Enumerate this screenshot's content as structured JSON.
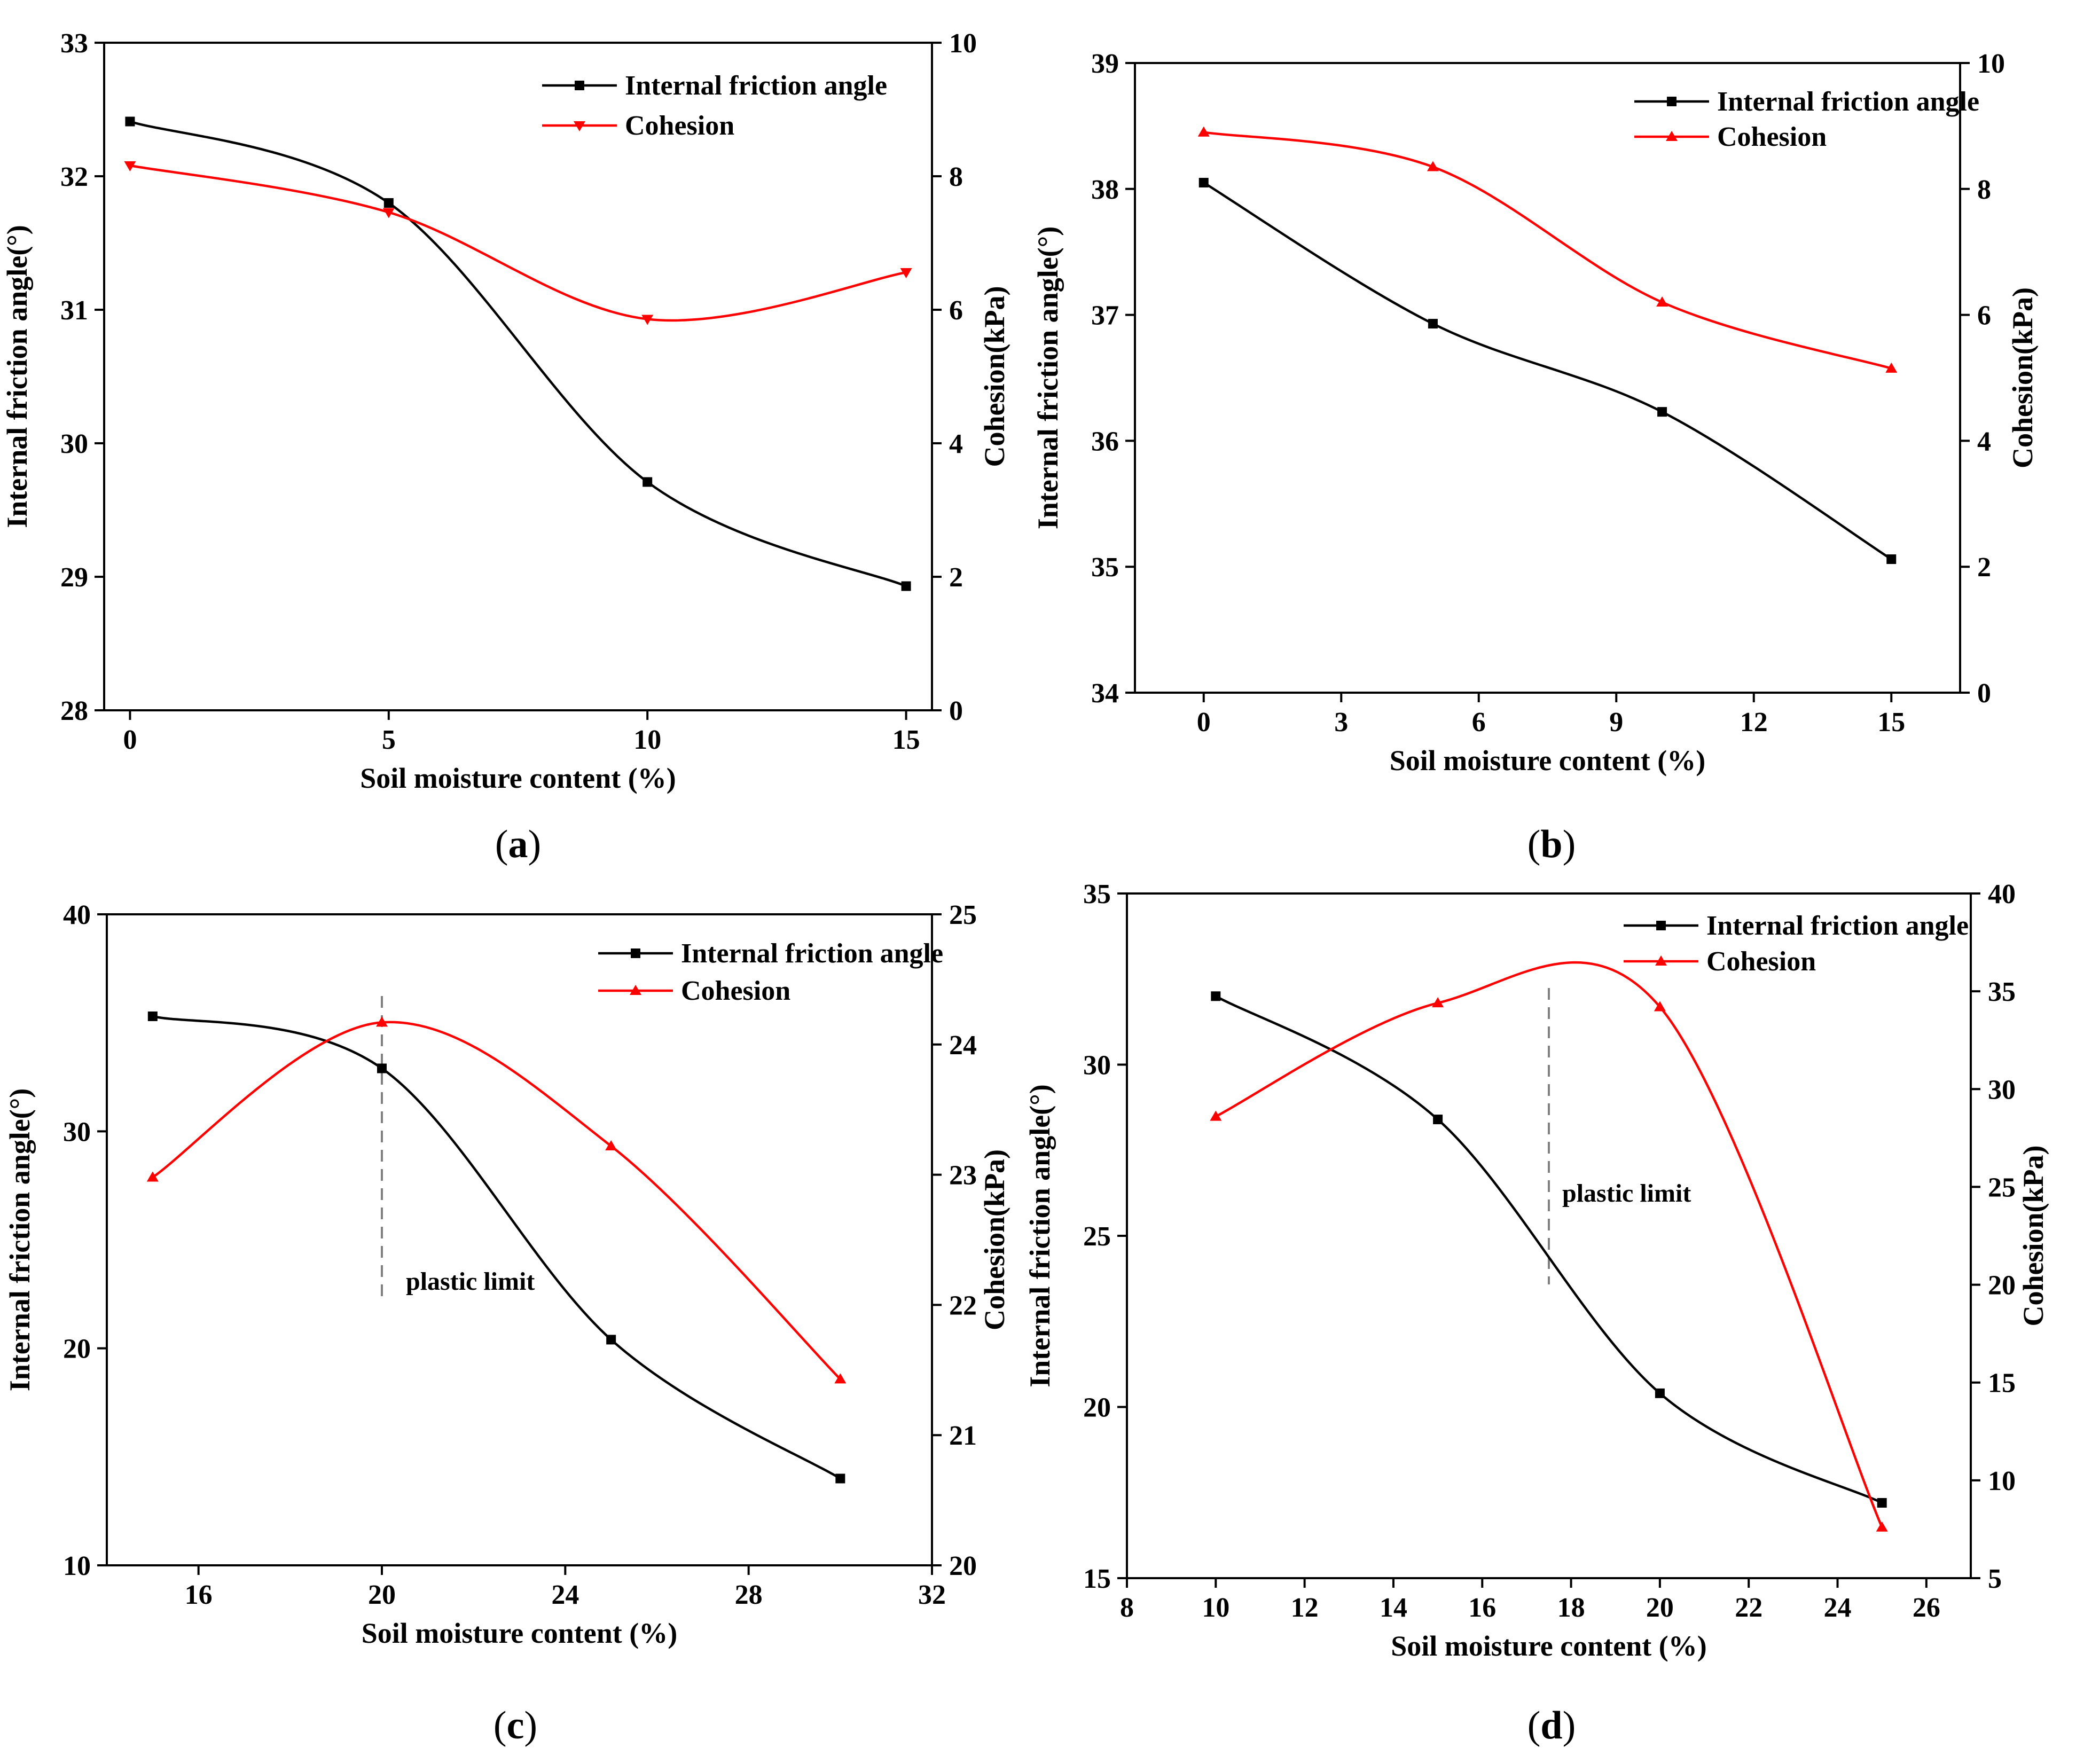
{
  "chart_data": [
    {
      "type": "line",
      "panel_label": "a",
      "xlabel": "Soil moisture content (%)",
      "ylabel_left": "Internal friction angle(°)",
      "ylabel_right": "Cohesion(kPa)",
      "xlim": [
        -0.5,
        15.5
      ],
      "xticks": [
        0,
        5,
        10,
        15
      ],
      "ylim_left": [
        28,
        33
      ],
      "yticks_left": [
        28,
        29,
        30,
        31,
        32,
        33
      ],
      "ylim_right": [
        0,
        10
      ],
      "yticks_right": [
        0,
        2,
        4,
        6,
        8,
        10
      ],
      "legend_position": "top-right",
      "series": [
        {
          "name": "Internal friction angle",
          "axis": "left",
          "color": "#000000",
          "marker": "square",
          "x": [
            0,
            5,
            10,
            15
          ],
          "y": [
            32.41,
            31.8,
            29.71,
            28.93
          ]
        },
        {
          "name": "Cohesion",
          "axis": "right",
          "color": "#ff0000",
          "marker": "triangle-down",
          "x": [
            0,
            5,
            10,
            15
          ],
          "y": [
            8.16,
            7.46,
            5.86,
            6.56
          ]
        }
      ],
      "annotations": []
    },
    {
      "type": "line",
      "panel_label": "b",
      "xlabel": "Soil moisture content (%)",
      "ylabel_left": "Internal friction angle(°)",
      "ylabel_right": "Cohesion(kPa)",
      "xlim": [
        -1.5,
        16.5
      ],
      "xticks": [
        0,
        3,
        6,
        9,
        12,
        15
      ],
      "ylim_left": [
        34,
        39
      ],
      "yticks_left": [
        34,
        35,
        36,
        37,
        38,
        39
      ],
      "ylim_right": [
        0,
        10
      ],
      "yticks_right": [
        0,
        2,
        4,
        6,
        8,
        10
      ],
      "legend_position": "top-right",
      "series": [
        {
          "name": "Internal friction angle",
          "axis": "left",
          "color": "#000000",
          "marker": "square",
          "x": [
            0,
            5,
            10,
            15
          ],
          "y": [
            38.05,
            36.93,
            36.23,
            35.06
          ]
        },
        {
          "name": "Cohesion",
          "axis": "right",
          "color": "#ff0000",
          "marker": "triangle-up",
          "x": [
            0,
            5,
            10,
            15
          ],
          "y": [
            8.9,
            8.35,
            6.2,
            5.15
          ]
        }
      ],
      "annotations": []
    },
    {
      "type": "line",
      "panel_label": "c",
      "xlabel": "Soil moisture content (%)",
      "ylabel_left": "Internal friction angle(°)",
      "ylabel_right": "Cohesion(kPa)",
      "xlim": [
        14,
        32
      ],
      "xticks": [
        16,
        20,
        24,
        28,
        32
      ],
      "ylim_left": [
        10,
        40
      ],
      "yticks_left": [
        10,
        20,
        30,
        40
      ],
      "ylim_right": [
        20,
        25
      ],
      "yticks_right": [
        20,
        21,
        22,
        23,
        24,
        25
      ],
      "legend_position": "top-right",
      "series": [
        {
          "name": "Internal friction angle",
          "axis": "left",
          "color": "#000000",
          "marker": "square",
          "x": [
            15,
            20,
            25,
            30
          ],
          "y": [
            35.3,
            32.9,
            20.4,
            14.0
          ]
        },
        {
          "name": "Cohesion",
          "axis": "right",
          "color": "#ff0000",
          "marker": "triangle-up",
          "x": [
            15,
            20,
            25,
            30
          ],
          "y": [
            22.98,
            24.17,
            23.22,
            21.43
          ]
        }
      ],
      "annotations": [
        {
          "text": "plastic limit",
          "x": 20
        }
      ]
    },
    {
      "type": "line",
      "panel_label": "d",
      "xlabel": "Soil moisture content (%)",
      "ylabel_left": "Internal friction angle(°)",
      "ylabel_right": "Cohesion(kPa)",
      "xlim": [
        8,
        27
      ],
      "xticks": [
        8,
        10,
        12,
        14,
        16,
        18,
        20,
        22,
        24,
        26
      ],
      "ylim_left": [
        15,
        35
      ],
      "yticks_left": [
        15,
        20,
        25,
        30,
        35
      ],
      "ylim_right": [
        5,
        40
      ],
      "yticks_right": [
        5,
        10,
        15,
        20,
        25,
        30,
        35,
        40
      ],
      "legend_position": "top-right",
      "series": [
        {
          "name": "Internal friction angle",
          "axis": "left",
          "color": "#000000",
          "marker": "square",
          "x": [
            10,
            15,
            20,
            25
          ],
          "y": [
            32.0,
            28.4,
            20.4,
            17.2
          ]
        },
        {
          "name": "Cohesion",
          "axis": "right",
          "color": "#ff0000",
          "marker": "triangle-up",
          "x": [
            10,
            15,
            20,
            25
          ],
          "y": [
            28.6,
            34.4,
            34.2,
            7.6
          ]
        }
      ],
      "annotations": [
        {
          "text": "plastic limit",
          "x": 17.5
        }
      ]
    }
  ]
}
